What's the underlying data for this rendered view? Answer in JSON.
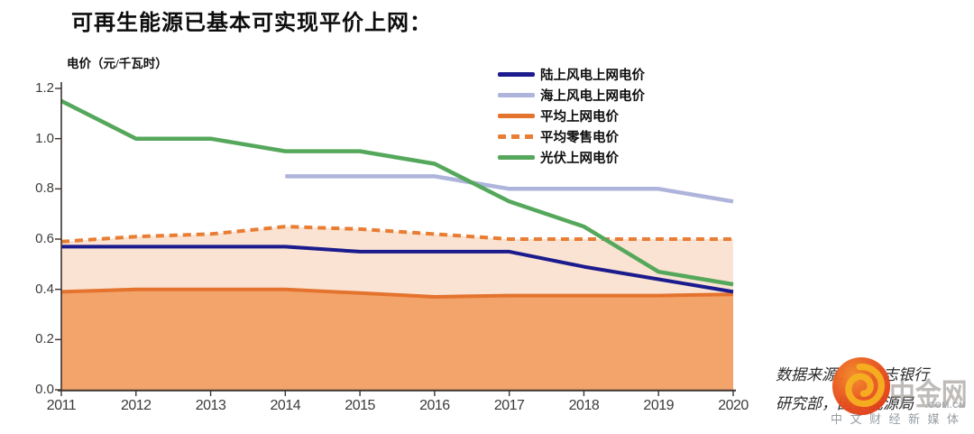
{
  "title": "可再生能源已基本可实现平价上网：",
  "y_axis_title": "电价（元/千瓦时）",
  "chart_data": {
    "type": "line",
    "x": [
      2011,
      2012,
      2013,
      2014,
      2015,
      2016,
      2017,
      2018,
      2019,
      2020
    ],
    "xlabel": "",
    "ylabel": "电价（元/千瓦时）",
    "ylim": [
      0,
      1.2
    ],
    "y_ticks": [
      0,
      0.2,
      0.4,
      0.6,
      0.8,
      1.0,
      1.2
    ],
    "y_tick_labels": [
      "0.0",
      "0.2",
      "0.4",
      "0.6",
      "0.8",
      "1.0",
      "1.2"
    ],
    "grid": false,
    "legend_position": "top-right-inside",
    "series": [
      {
        "key": "onshore-wind",
        "name": "陆上风电上网电价",
        "color": "#1b1b8e",
        "style": "solid",
        "width": 4,
        "values": [
          0.57,
          0.57,
          0.57,
          0.57,
          0.55,
          0.55,
          0.55,
          0.49,
          0.44,
          0.39
        ]
      },
      {
        "key": "offshore-wind",
        "name": "海上风电上网电价",
        "color": "#aeb4db",
        "style": "solid",
        "width": 4.5,
        "values": [
          null,
          null,
          null,
          0.85,
          0.85,
          0.85,
          0.8,
          0.8,
          0.8,
          0.75
        ]
      },
      {
        "key": "avg-grid-price",
        "name": "平均上网电价",
        "color": "#e4732e",
        "style": "solid",
        "width": 4,
        "area_fill": "#f3a46b",
        "values": [
          0.39,
          0.4,
          0.4,
          0.4,
          0.385,
          0.37,
          0.375,
          0.375,
          0.375,
          0.38
        ]
      },
      {
        "key": "avg-retail-price",
        "name": "平均零售电价",
        "color": "#e87d33",
        "style": "dashed",
        "width": 4,
        "band_fill_to_avg_grid": "#fae3d2",
        "values": [
          0.59,
          0.61,
          0.62,
          0.65,
          0.64,
          0.62,
          0.6,
          0.6,
          0.6,
          0.6
        ]
      },
      {
        "key": "solar-pv",
        "name": "光伏上网电价",
        "color": "#55a85b",
        "style": "solid",
        "width": 4.5,
        "values": [
          1.15,
          1.0,
          1.0,
          0.95,
          0.95,
          0.9,
          0.75,
          0.65,
          0.47,
          0.42
        ]
      }
    ]
  },
  "source_note": {
    "line1": "数据来源：德意志银行",
    "line2": "研究部，国家能源局"
  },
  "watermark": {
    "brand": "中金网",
    "domain": ".COM.CN",
    "tagline": "中文财经新媒体",
    "logo_color": "#e2401d",
    "swirl_color": "#f6b021"
  }
}
